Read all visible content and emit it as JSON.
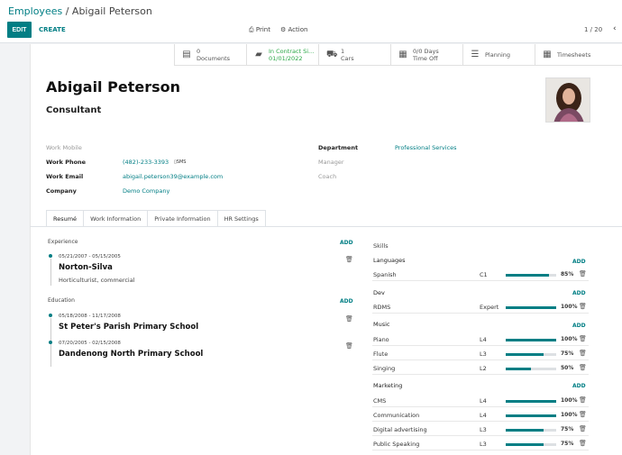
{
  "breadcrumb": {
    "parent": "Employees",
    "separator": " / ",
    "current": "Abigail Peterson"
  },
  "toolbar": {
    "edit_label": "EDIT",
    "create_label": "CREATE",
    "print_label": "Print",
    "action_label": "Action",
    "pager": "1 / 20"
  },
  "smart_buttons": [
    {
      "icon": "document-icon",
      "line1": "0",
      "line2": "Documents"
    },
    {
      "icon": "book-icon",
      "line1": "In Contract Si...",
      "line2": "01/01/2022"
    },
    {
      "icon": "car-icon",
      "line1": "1",
      "line2": "Cars"
    },
    {
      "icon": "calendar-icon",
      "line1": "0/0 Days",
      "line2": "Time Off"
    },
    {
      "icon": "planning-icon",
      "line1": "Planning",
      "line2": ""
    },
    {
      "icon": "calendar-icon",
      "line1": "Timesheets",
      "line2": ""
    }
  ],
  "employee": {
    "name": "Abigail Peterson",
    "job_title": "Consultant"
  },
  "fields": {
    "work_mobile_label": "Work Mobile",
    "work_phone_label": "Work Phone",
    "work_phone": "(482)-233-3393",
    "sms_label": "SMS",
    "work_email_label": "Work Email",
    "work_email": "abigail.peterson39@example.com",
    "company_label": "Company",
    "company": "Demo Company",
    "department_label": "Department",
    "department": "Professional Services",
    "manager_label": "Manager",
    "coach_label": "Coach"
  },
  "tabs": [
    "Resumé",
    "Work Information",
    "Private Information",
    "HR Settings"
  ],
  "resume": {
    "add_label": "ADD",
    "sections": [
      {
        "title": "Experience",
        "lines": [
          {
            "dates": "05/21/2007 - 05/15/2005",
            "name": "Norton-Silva",
            "description": "Horticulturist, commercial"
          }
        ]
      },
      {
        "title": "Education",
        "lines": [
          {
            "dates": "05/18/2008 - 11/17/2008",
            "name": "St Peter's Parish Primary School",
            "description": ""
          },
          {
            "dates": "07/20/2005 - 02/15/2008",
            "name": "Dandenong North Primary School",
            "description": ""
          }
        ]
      }
    ]
  },
  "skills": {
    "title": "Skills",
    "add_label": "ADD",
    "groups": [
      {
        "type": "Languages",
        "items": [
          {
            "name": "Spanish",
            "level": "C1",
            "progress": 85,
            "pct": "85%"
          }
        ]
      },
      {
        "type": "Dev",
        "items": [
          {
            "name": "RDMS",
            "level": "Expert",
            "progress": 100,
            "pct": "100%"
          }
        ]
      },
      {
        "type": "Music",
        "items": [
          {
            "name": "Piano",
            "level": "L4",
            "progress": 100,
            "pct": "100%"
          },
          {
            "name": "Flute",
            "level": "L3",
            "progress": 75,
            "pct": "75%"
          },
          {
            "name": "Singing",
            "level": "L2",
            "progress": 50,
            "pct": "50%"
          }
        ]
      },
      {
        "type": "Marketing",
        "items": [
          {
            "name": "CMS",
            "level": "L4",
            "progress": 100,
            "pct": "100%"
          },
          {
            "name": "Communication",
            "level": "L4",
            "progress": 100,
            "pct": "100%"
          },
          {
            "name": "Digital advertising",
            "level": "L3",
            "progress": 75,
            "pct": "75%"
          },
          {
            "name": "Public Speaking",
            "level": "L3",
            "progress": 75,
            "pct": "75%"
          }
        ]
      }
    ]
  },
  "colors": {
    "accent": "#017e84",
    "success": "#28a745"
  }
}
